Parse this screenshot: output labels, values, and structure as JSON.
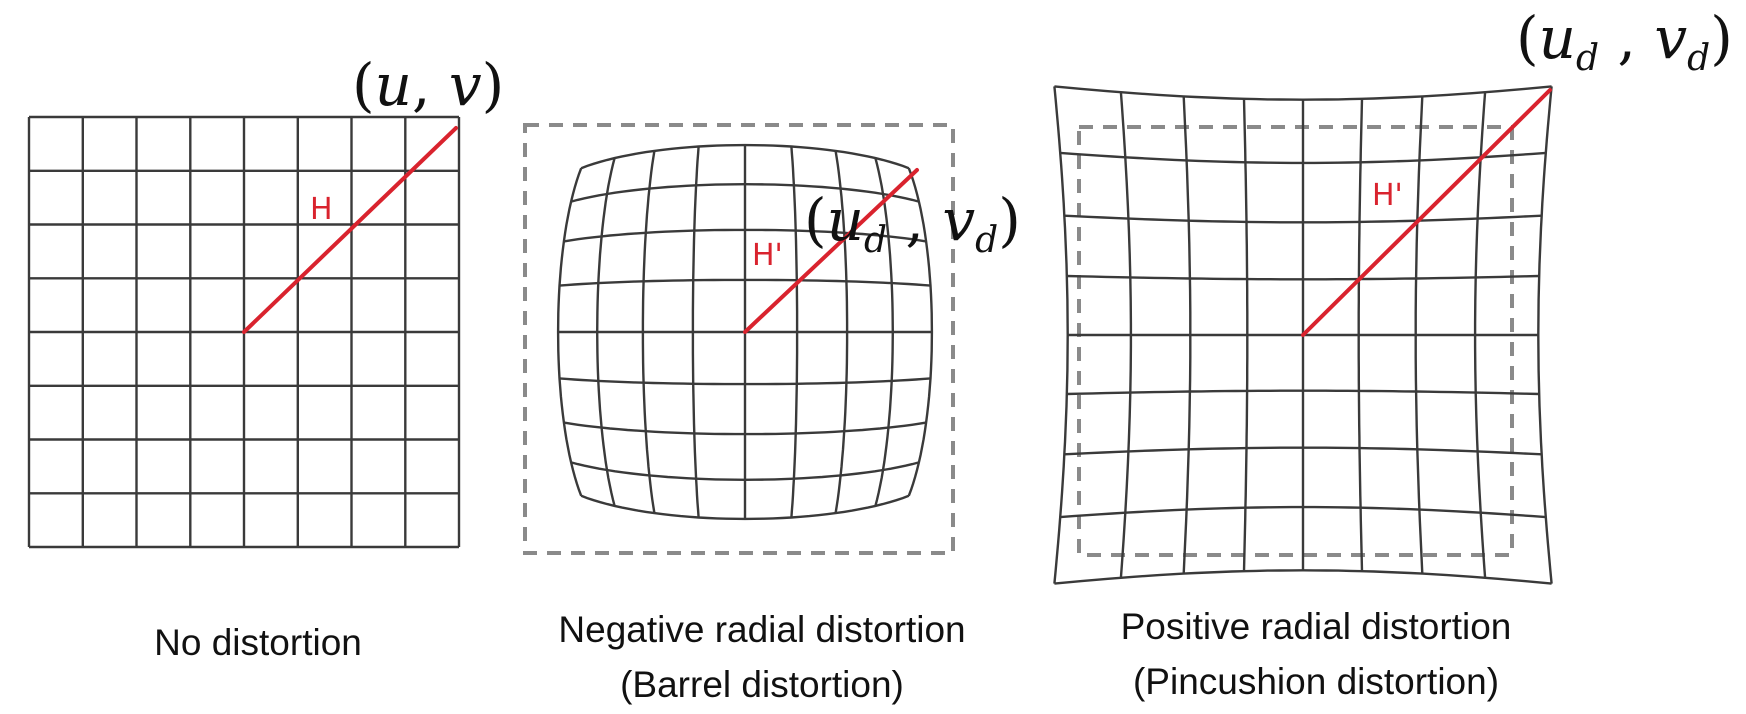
{
  "panels": [
    {
      "id": "no-distortion",
      "caption": [
        "No distortion"
      ],
      "distance_label": "H",
      "point_label": {
        "u": "u",
        "v": "v",
        "subscript": ""
      }
    },
    {
      "id": "barrel",
      "caption": [
        "Negative radial distortion",
        "(Barrel distortion)"
      ],
      "distance_label": "H'",
      "point_label": {
        "u": "u",
        "v": "v",
        "subscript": "d"
      }
    },
    {
      "id": "pincushion",
      "caption": [
        "Positive radial distortion",
        "(Pincushion distortion)"
      ],
      "distance_label": "H'",
      "point_label": {
        "u": "u",
        "v": "v",
        "subscript": "d"
      }
    }
  ],
  "colors": {
    "grid": "#3a3a3a",
    "ray": "#d9232e",
    "frame": "#8a8a8a"
  }
}
